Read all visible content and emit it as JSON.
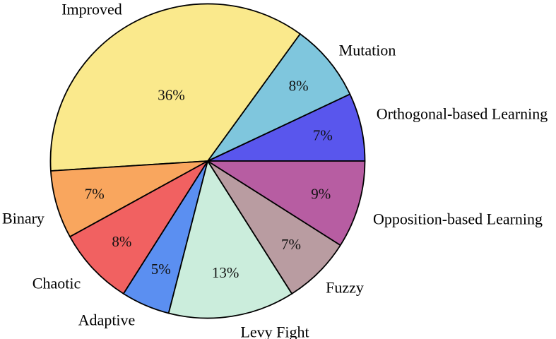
{
  "chart_data": {
    "type": "pie",
    "legend_position": "none",
    "labels_position": "outside",
    "value_labels": "percent-inside",
    "start_angle_deg": 0,
    "direction": "counterclockwise",
    "stroke_color": "#000000",
    "background_color": "#ffffff",
    "slices": [
      {
        "label": "Orthogonal-based Learning",
        "value": 7,
        "pct_label": "7%",
        "color": "#5956ed"
      },
      {
        "label": "Mutation",
        "value": 8,
        "pct_label": "8%",
        "color": "#7fc6dd"
      },
      {
        "label": "Improved",
        "value": 36,
        "pct_label": "36%",
        "color": "#fae98c"
      },
      {
        "label": "Binary",
        "value": 7,
        "pct_label": "7%",
        "color": "#f9a65e"
      },
      {
        "label": "Chaotic",
        "value": 8,
        "pct_label": "8%",
        "color": "#f16161"
      },
      {
        "label": "Adaptive",
        "value": 5,
        "pct_label": "5%",
        "color": "#5b8ff1"
      },
      {
        "label": "Levy Fight",
        "value": 13,
        "pct_label": "13%",
        "color": "#cbeddc"
      },
      {
        "label": "Fuzzy",
        "value": 7,
        "pct_label": "7%",
        "color": "#b99ca1"
      },
      {
        "label": "Opposition-based Learning",
        "value": 9,
        "pct_label": "9%",
        "color": "#b75da2"
      }
    ]
  }
}
